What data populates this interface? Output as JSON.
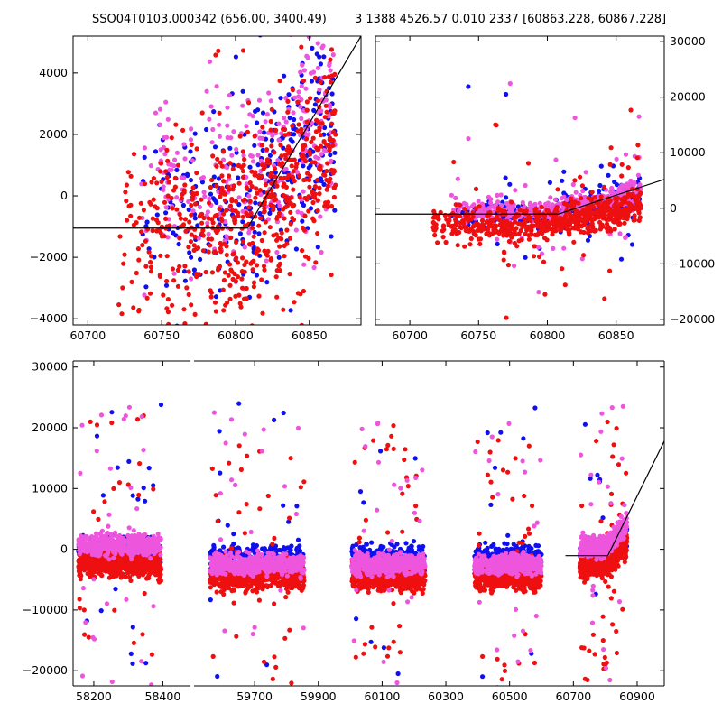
{
  "title": {
    "left": "SSO04T0103.000342 (656.00, 3400.49)",
    "right": "3 1388 4526.57 0.010 2337 [60863.228, 60867.228]"
  },
  "colors": {
    "blue": "#1010ee",
    "red": "#ee1010",
    "magenta": "#ee55dd",
    "line": "#000000"
  },
  "chart_data": [
    {
      "type": "scatter",
      "name": "top-left zoom",
      "xlim": [
        60690,
        60885
      ],
      "ylim": [
        -4200,
        5200
      ],
      "xticks": [
        60700,
        60750,
        60800,
        60850
      ],
      "yticks": [
        -4000,
        -2000,
        0,
        2000,
        4000
      ],
      "ytick_side": "left",
      "series": [
        {
          "name": "blue",
          "color": "blue",
          "count": 320,
          "x_range": [
            60735,
            60868
          ],
          "y_center": -300,
          "y_spread": 2200
        },
        {
          "name": "magenta",
          "color": "magenta",
          "count": 300,
          "x_range": [
            60735,
            60868
          ],
          "y_center": 300,
          "y_spread": 2200
        },
        {
          "name": "red",
          "color": "red",
          "count": 650,
          "x_range": [
            60720,
            60868
          ],
          "y_center": -1200,
          "y_spread": 2200
        }
      ],
      "fit_line": [
        [
          60690,
          -1050
        ],
        [
          60808,
          -1050
        ],
        [
          60885,
          5200
        ]
      ]
    },
    {
      "type": "scatter",
      "name": "top-right window",
      "xlim": [
        60675,
        60885
      ],
      "ylim": [
        -21000,
        31000
      ],
      "xticks": [
        60700,
        60750,
        60800,
        60850
      ],
      "yticks": [
        -20000,
        -10000,
        0,
        10000,
        20000,
        30000
      ],
      "ytick_side": "right",
      "series": [
        {
          "name": "blue",
          "color": "blue",
          "count": 300,
          "x_range": [
            60730,
            60868
          ],
          "y_center": -1000,
          "y_spread": 1800
        },
        {
          "name": "magenta",
          "color": "magenta",
          "count": 420,
          "x_range": [
            60730,
            60868
          ],
          "y_center": -500,
          "y_spread": 1600
        },
        {
          "name": "red",
          "color": "red",
          "count": 650,
          "x_range": [
            60715,
            60868
          ],
          "y_center": -3000,
          "y_spread": 2200
        }
      ],
      "fit_line": [
        [
          60675,
          -1050
        ],
        [
          60808,
          -1050
        ],
        [
          60885,
          5200
        ]
      ]
    },
    {
      "type": "scatter",
      "name": "bottom full timeline",
      "ylim": [
        -22500,
        31000
      ],
      "yticks": [
        -20000,
        -10000,
        0,
        10000,
        20000,
        30000
      ],
      "ytick_side": "left",
      "segments": [
        {
          "xlim": [
            58140,
            58480
          ],
          "xticks": [
            58200,
            58400
          ]
        },
        {
          "xlim": [
            59510,
            60985
          ],
          "xticks": [
            59700,
            59900,
            60100,
            60300,
            60500,
            60700,
            60900
          ]
        }
      ],
      "clusters": [
        {
          "x_range": [
            58155,
            58395
          ],
          "blue_center": -300,
          "magenta_center": 700,
          "red_center": -2500
        },
        {
          "x_range": [
            59560,
            59855
          ],
          "blue_center": -1500,
          "magenta_center": -2500,
          "red_center": -4500
        },
        {
          "x_range": [
            60005,
            60235
          ],
          "blue_center": -1500,
          "magenta_center": -2500,
          "red_center": -4500
        },
        {
          "x_range": [
            60390,
            60600
          ],
          "blue_center": -1500,
          "magenta_center": -2500,
          "red_center": -4500
        },
        {
          "x_range": [
            60720,
            60868
          ],
          "blue_center": -1000,
          "magenta_center": 500,
          "red_center": -2500
        }
      ],
      "fit_line": [
        [
          60675,
          -1050
        ],
        [
          60808,
          -1050
        ],
        [
          60985,
          17800
        ]
      ]
    }
  ]
}
